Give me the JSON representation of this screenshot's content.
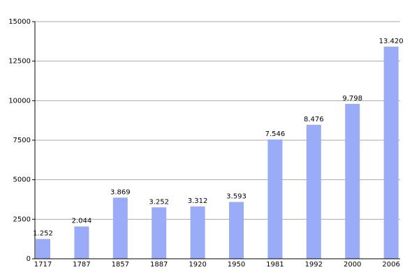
{
  "chart_data": {
    "type": "bar",
    "categories": [
      "1717",
      "1787",
      "1857",
      "1887",
      "1920",
      "1950",
      "1981",
      "1992",
      "2000",
      "2006"
    ],
    "values": [
      1252,
      2044,
      3869,
      3252,
      3312,
      3593,
      7546,
      8476,
      9798,
      13420
    ],
    "value_labels": [
      "1.252",
      "2.044",
      "3.869",
      "3.252",
      "3.312",
      "3.593",
      "7.546",
      "8.476",
      "9.798",
      "13.420"
    ],
    "color": "#9aabf7",
    "ylim": [
      0,
      15000
    ],
    "yticks": [
      0,
      2500,
      5000,
      7500,
      10000,
      12500,
      15000
    ],
    "grid": true
  }
}
